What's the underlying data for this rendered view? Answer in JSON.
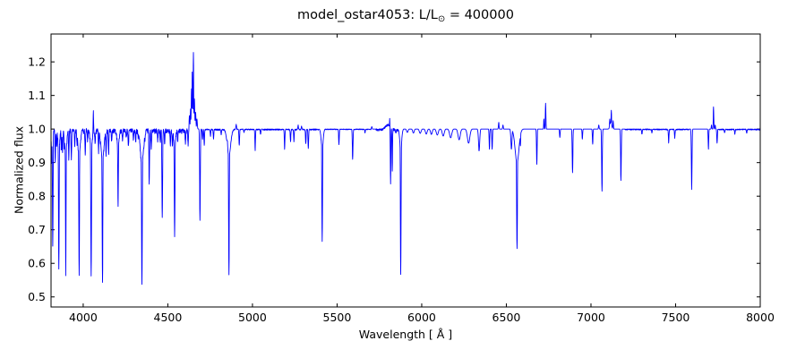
{
  "title": {
    "prefix": "model_ostar4053: L/L",
    "sub": "⊙",
    "suffix": " = 400000"
  },
  "axes": {
    "xlabel": "Wavelength [ Å ]",
    "ylabel": "Normalized flux",
    "xlim": [
      3810,
      8000
    ],
    "ylim": [
      0.47,
      1.283
    ],
    "xticks": [
      4000,
      4500,
      5000,
      5500,
      6000,
      6500,
      7000,
      7500,
      8000
    ],
    "yticks": [
      0.5,
      0.6,
      0.7,
      0.8,
      0.9,
      1.0,
      1.1,
      1.2
    ],
    "grid": false,
    "frame_color": "#000000",
    "background_color": "#ffffff"
  },
  "chart_data": {
    "type": "line",
    "title": "model_ostar4053: L/L⊙ = 400000",
    "xlabel": "Wavelength [ Å ]",
    "ylabel": "Normalized flux",
    "xlim": [
      3810,
      8000
    ],
    "ylim": [
      0.47,
      1.283
    ],
    "xticks": [
      4000,
      4500,
      5000,
      5500,
      6000,
      6500,
      7000,
      7500,
      8000
    ],
    "yticks": [
      0.5,
      0.6,
      0.7,
      0.8,
      0.9,
      1.0,
      1.1,
      1.2
    ],
    "grid": false,
    "legend": null,
    "line_color": "#0000ff",
    "line_width": 0.9,
    "continuum_flux": 1.0,
    "sample_step_angstrom": 1,
    "feature_columns": [
      "wavelength_A",
      "peak_flux",
      "halfwidth_A"
    ],
    "features": [
      [
        3808,
        0.93,
        2.5
      ],
      [
        3814,
        0.9,
        2.5
      ],
      [
        3820,
        0.655,
        2.5
      ],
      [
        3835,
        0.91,
        2.5
      ],
      [
        3843,
        0.95,
        2.5
      ],
      [
        3856,
        0.585,
        2.5
      ],
      [
        3856,
        0.94,
        7
      ],
      [
        3871,
        0.94,
        2.5
      ],
      [
        3878,
        0.93,
        2.5
      ],
      [
        3889,
        0.94,
        2.5
      ],
      [
        3897,
        0.57,
        2.5
      ],
      [
        3897,
        0.93,
        8
      ],
      [
        3915,
        0.91,
        2.5
      ],
      [
        3930,
        0.92,
        2.5
      ],
      [
        3950,
        0.95,
        2.5
      ],
      [
        3964,
        0.96,
        2.5
      ],
      [
        3976,
        0.565,
        2.8
      ],
      [
        3976,
        0.92,
        9
      ],
      [
        4012,
        0.93,
        2.5
      ],
      [
        4026,
        0.97,
        2.5
      ],
      [
        4047,
        0.565,
        2.8
      ],
      [
        4047,
        0.94,
        8
      ],
      [
        4060,
        1.067,
        1.8
      ],
      [
        4070,
        0.96,
        2.5
      ],
      [
        4091,
        0.94,
        2.5
      ],
      [
        4114,
        0.545,
        3
      ],
      [
        4114,
        0.91,
        12
      ],
      [
        4135,
        0.93,
        2.5
      ],
      [
        4150,
        0.93,
        2.5
      ],
      [
        4168,
        0.97,
        2.5
      ],
      [
        4206,
        0.77,
        2.8
      ],
      [
        4206,
        0.95,
        8
      ],
      [
        4232,
        0.97,
        2.5
      ],
      [
        4255,
        0.98,
        2.5
      ],
      [
        4267,
        0.95,
        2.5
      ],
      [
        4296,
        0.975,
        2.5
      ],
      [
        4310,
        0.97,
        2.5
      ],
      [
        4325,
        0.975,
        2.5
      ],
      [
        4347,
        0.537,
        3
      ],
      [
        4347,
        0.9,
        13
      ],
      [
        4364,
        0.97,
        2.5
      ],
      [
        4390,
        0.84,
        2.5
      ],
      [
        4402,
        0.95,
        2.5
      ],
      [
        4440,
        0.97,
        2.5
      ],
      [
        4455,
        0.965,
        2.5
      ],
      [
        4467,
        0.745,
        2.8
      ],
      [
        4481,
        0.96,
        2.5
      ],
      [
        4515,
        0.955,
        2.5
      ],
      [
        4527,
        0.955,
        2.5
      ],
      [
        4540,
        0.686,
        2.8
      ],
      [
        4540,
        0.95,
        7
      ],
      [
        4558,
        0.97,
        2.5
      ],
      [
        4604,
        0.965,
        2.5
      ],
      [
        4620,
        0.955,
        2.5
      ],
      [
        4628,
        1.04,
        3
      ],
      [
        4634,
        1.06,
        2.2
      ],
      [
        4640,
        1.12,
        2.5
      ],
      [
        4644,
        1.17,
        2
      ],
      [
        4648,
        1.06,
        14
      ],
      [
        4651,
        1.228,
        2.3
      ],
      [
        4657,
        1.09,
        2.5
      ],
      [
        4664,
        1.05,
        3
      ],
      [
        4672,
        1.03,
        3
      ],
      [
        4690,
        0.728,
        2.8
      ],
      [
        4705,
        0.97,
        2.5
      ],
      [
        4715,
        0.955,
        2.5
      ],
      [
        4752,
        0.98,
        2.5
      ],
      [
        4770,
        0.97,
        2.5
      ],
      [
        4815,
        0.985,
        2.5
      ],
      [
        4852,
        1.018,
        2.5
      ],
      [
        4861,
        0.566,
        3
      ],
      [
        4861,
        0.92,
        14
      ],
      [
        4904,
        1.015,
        2.5
      ],
      [
        4922,
        0.952,
        2.5
      ],
      [
        4950,
        0.99,
        2.5
      ],
      [
        5016,
        0.938,
        2.5
      ],
      [
        5048,
        0.985,
        2.5
      ],
      [
        5190,
        0.94,
        2.5
      ],
      [
        5225,
        0.965,
        2.5
      ],
      [
        5245,
        0.963,
        2.5
      ],
      [
        5270,
        1.012,
        2.5
      ],
      [
        5290,
        1.01,
        2.5
      ],
      [
        5315,
        0.958,
        2.5
      ],
      [
        5330,
        0.943,
        2.5
      ],
      [
        5412,
        0.665,
        2.8
      ],
      [
        5412,
        0.94,
        8
      ],
      [
        5511,
        0.955,
        2.5
      ],
      [
        5592,
        0.91,
        2.8
      ],
      [
        5665,
        0.99,
        2.5
      ],
      [
        5705,
        1.007,
        2.5
      ],
      [
        5800,
        1.015,
        22
      ],
      [
        5811,
        1.033,
        1.8
      ],
      [
        5816,
        0.83,
        2.2
      ],
      [
        5826,
        0.875,
        2.2
      ],
      [
        5847,
        0.99,
        2.5
      ],
      [
        5876,
        0.567,
        2.8
      ],
      [
        5876,
        0.94,
        8
      ],
      [
        5915,
        0.99,
        6
      ],
      [
        5951,
        0.988,
        6
      ],
      [
        5991,
        0.987,
        7
      ],
      [
        6027,
        0.985,
        7
      ],
      [
        6057,
        0.984,
        7
      ],
      [
        6092,
        0.982,
        8
      ],
      [
        6127,
        0.979,
        8
      ],
      [
        6171,
        0.974,
        9
      ],
      [
        6221,
        0.968,
        9
      ],
      [
        6277,
        0.958,
        10
      ],
      [
        6339,
        0.935,
        5
      ],
      [
        6400,
        0.94,
        2.5
      ],
      [
        6416,
        0.94,
        2.5
      ],
      [
        6455,
        1.02,
        2.5
      ],
      [
        6480,
        1.012,
        2.5
      ],
      [
        6530,
        0.94,
        4.5
      ],
      [
        6563,
        0.644,
        3.5
      ],
      [
        6563,
        0.9,
        16
      ],
      [
        6583,
        0.95,
        2.5
      ],
      [
        6680,
        0.895,
        2.5
      ],
      [
        6722,
        1.03,
        2.2
      ],
      [
        6732,
        1.077,
        2.2
      ],
      [
        6816,
        0.975,
        2.5
      ],
      [
        6891,
        0.87,
        2.8
      ],
      [
        6949,
        0.97,
        2.5
      ],
      [
        7010,
        0.955,
        2.5
      ],
      [
        7046,
        1.012,
        2.5
      ],
      [
        7065,
        0.815,
        2.8
      ],
      [
        7111,
        1.03,
        2.5
      ],
      [
        7117,
        1.02,
        7
      ],
      [
        7120,
        1.056,
        2.2
      ],
      [
        7131,
        1.025,
        2.5
      ],
      [
        7177,
        0.847,
        2.8
      ],
      [
        7301,
        0.985,
        2.5
      ],
      [
        7360,
        0.99,
        2.5
      ],
      [
        7459,
        0.96,
        2.5
      ],
      [
        7495,
        0.975,
        2.5
      ],
      [
        7595,
        0.82,
        2.8
      ],
      [
        7694,
        0.94,
        2.5
      ],
      [
        7712,
        1.012,
        2.2
      ],
      [
        7724,
        1.066,
        2.2
      ],
      [
        7734,
        1.012,
        2.2
      ],
      [
        7745,
        0.958,
        2.5
      ],
      [
        7790,
        0.99,
        2.5
      ],
      [
        7850,
        0.985,
        2.5
      ],
      [
        7920,
        0.988,
        2.5
      ]
    ],
    "noise_band_columns": [
      "from_A",
      "to_A",
      "amplitude"
    ],
    "noise_bands": [
      [
        3810,
        4625,
        0.013
      ],
      [
        4700,
        4858,
        0.004
      ],
      [
        4870,
        5050,
        0.003
      ],
      [
        5060,
        5410,
        0.0035
      ],
      [
        5430,
        5700,
        0.002
      ],
      [
        5730,
        5860,
        0.006
      ],
      [
        7200,
        7580,
        0.003
      ],
      [
        7750,
        7995,
        0.003
      ]
    ]
  }
}
